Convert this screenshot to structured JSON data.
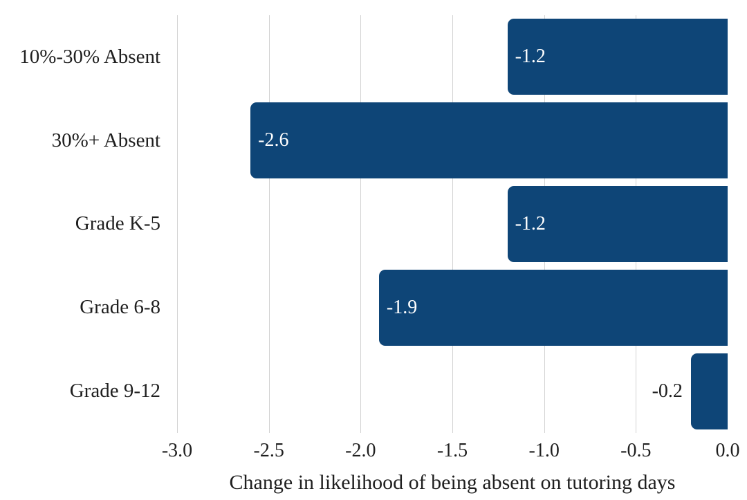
{
  "chart_data": {
    "type": "bar",
    "orientation": "horizontal",
    "categories": [
      "10%-30% Absent",
      "30%+ Absent",
      "Grade K-5",
      "Grade 6-8",
      "Grade 9-12"
    ],
    "values": [
      -1.2,
      -2.6,
      -1.2,
      -1.9,
      -0.2
    ],
    "value_labels": [
      "-1.2",
      "-2.6",
      "-1.2",
      "-1.9",
      "-0.2"
    ],
    "xlabel": "Change in likelihood of being absent on tutoring days",
    "xlim": [
      -3.0,
      0.0
    ],
    "xticks": [
      "-3.0",
      "-2.5",
      "-2.0",
      "-1.5",
      "-1.0",
      "-0.5",
      "0.0"
    ],
    "grid": "vertical-gridlines-every-0.5",
    "legend": "none",
    "colors": {
      "bar": "#0e4577",
      "gridline": "#d2d2d2",
      "text": "#1f1f1f",
      "value_label_inside": "#ffffff",
      "background": "#ffffff"
    }
  }
}
